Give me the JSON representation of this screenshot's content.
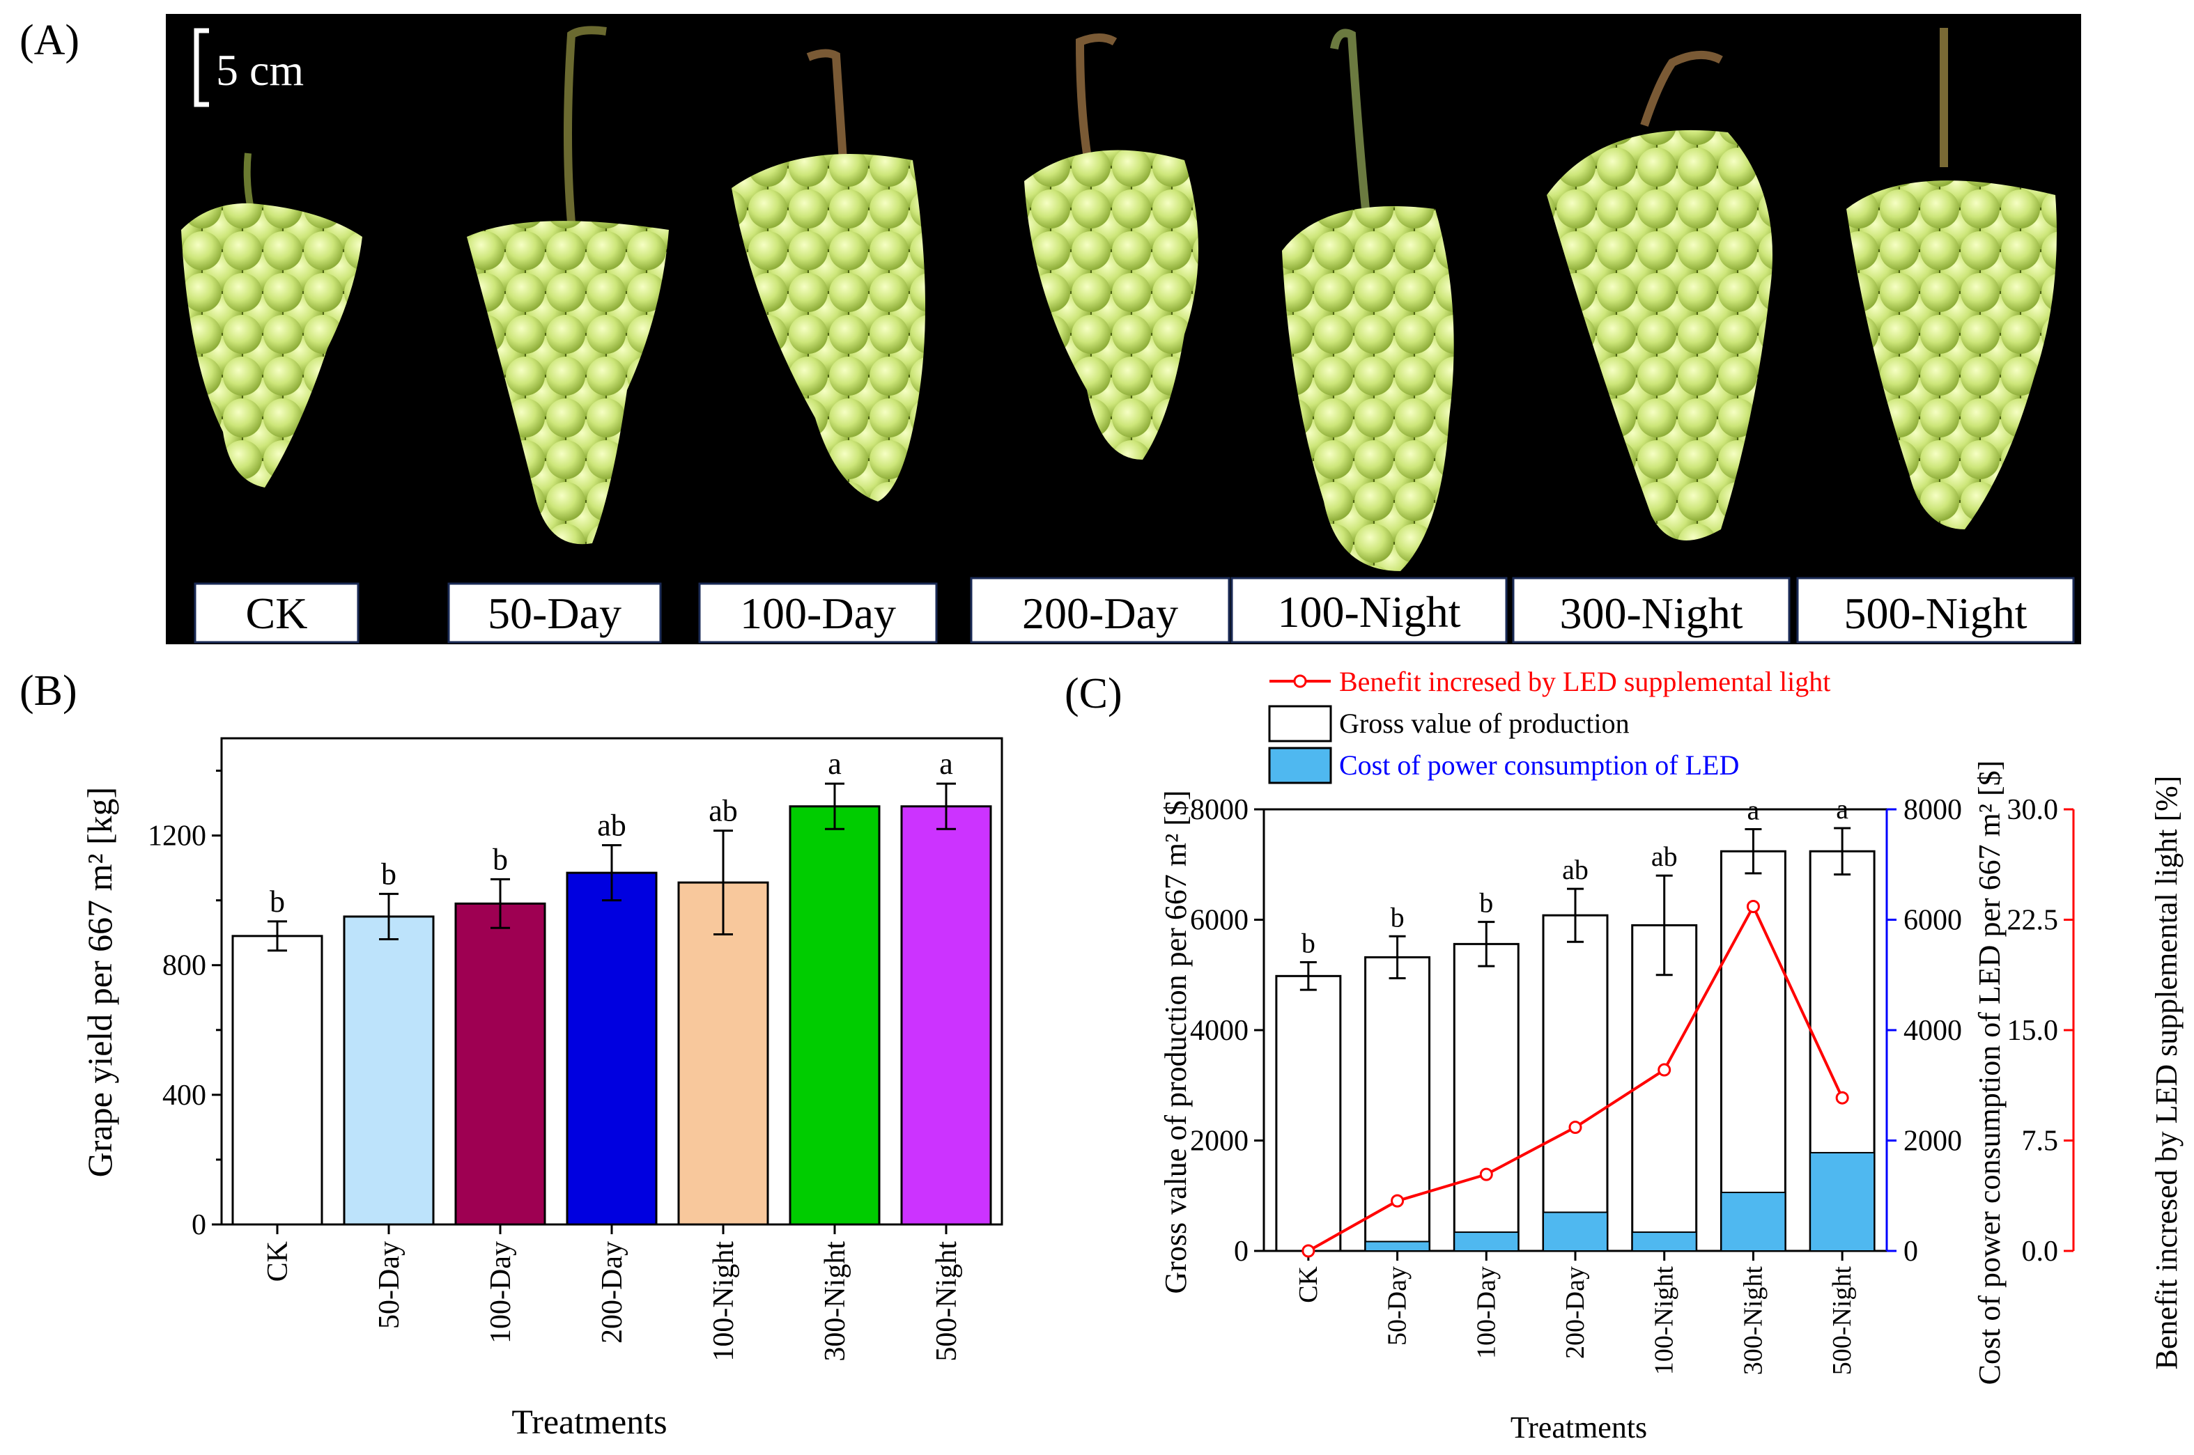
{
  "panel_a": {
    "letter": "(A)",
    "scale_bar_label": "5 cm",
    "labels": [
      "CK",
      "50-Day",
      "100-Day",
      "200-Day",
      "100-Night",
      "300-Night",
      "500-Night"
    ]
  },
  "chart_data": [
    {
      "panel": "(B)",
      "type": "bar",
      "categories": [
        "CK",
        "50-Day",
        "100-Day",
        "200-Day",
        "100-Night",
        "300-Night",
        "500-Night"
      ],
      "values": [
        890,
        950,
        990,
        1085,
        1055,
        1290,
        1290
      ],
      "errors": [
        45,
        70,
        75,
        85,
        160,
        70,
        70
      ],
      "significance": [
        "b",
        "b",
        "b",
        "ab",
        "ab",
        "a",
        "a"
      ],
      "colors": [
        "#ffffff",
        "#bde3fb",
        "#9e0052",
        "#0000e0",
        "#f8c89c",
        "#00cc00",
        "#cc33ff"
      ],
      "xlabel": "Treatments",
      "ylabel": "Grape yield per 667 m² [kg]",
      "ylim": [
        0,
        1500
      ],
      "yticks": [
        0,
        400,
        800,
        1200
      ]
    },
    {
      "panel": "(C)",
      "type": "bar",
      "categories": [
        "CK",
        "50-Day",
        "100-Day",
        "200-Day",
        "100-Night",
        "300-Night",
        "500-Night"
      ],
      "series": [
        {
          "name": "Gross value of production",
          "values": [
            4980,
            5320,
            5560,
            6080,
            5900,
            7240,
            7240
          ],
          "errors": [
            250,
            380,
            400,
            480,
            900,
            400,
            420
          ],
          "color": "#ffffff"
        },
        {
          "name": "Cost of power consumption of LED",
          "values": [
            0,
            170,
            340,
            700,
            340,
            1060,
            1780
          ],
          "color": "#4fb8f0"
        },
        {
          "name": "Benefit incresed by LED supplemental light",
          "type": "line",
          "axis": "right",
          "values": [
            0.0,
            3.4,
            5.2,
            8.4,
            12.3,
            23.4,
            10.4
          ],
          "color": "#ff0000"
        }
      ],
      "significance": [
        "b",
        "b",
        "b",
        "ab",
        "ab",
        "a",
        "a"
      ],
      "xlabel": "Treatments",
      "ylabel_left": "Gross value of production per 667 m² [$]",
      "ylabel_mid": "Cost of power consumption of LED per 667 m² [$]",
      "ylabel_right": "Benefit incresed by LED supplemental light [%]",
      "ylim_left": [
        0,
        8000
      ],
      "yticks_left": [
        0,
        2000,
        4000,
        6000,
        8000
      ],
      "ylim_mid": [
        0,
        8000
      ],
      "yticks_mid": [
        0,
        2000,
        4000,
        6000,
        8000
      ],
      "ylim_right": [
        0,
        30
      ],
      "yticks_right": [
        "0.0",
        "7.5",
        "15.0",
        "22.5",
        "30.0"
      ]
    }
  ]
}
